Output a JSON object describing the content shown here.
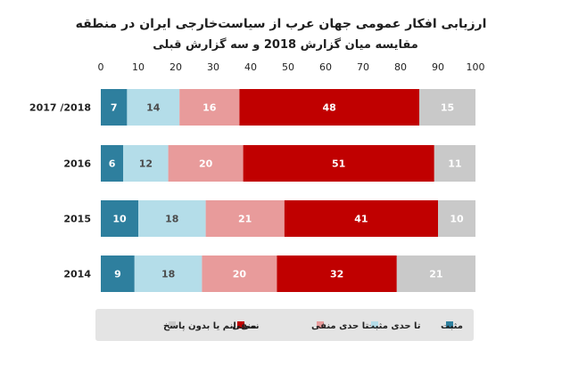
{
  "chart_data": {
    "type": "bar",
    "orientation": "horizontal",
    "stacked": true,
    "title": "ارزیابی افکار عمومی جهان عرب از سیاست‌خارجی ایران در منطقه",
    "subtitle": "مقایسه میان گزارش 2018 و سه گزارش قبلی",
    "categories": [
      "2017 /2018",
      "2016",
      "2015",
      "2014"
    ],
    "xlim": [
      0,
      100
    ],
    "xticks": [
      0,
      10,
      20,
      30,
      40,
      50,
      60,
      70,
      80,
      90,
      100
    ],
    "grid": false,
    "legend_position": "bottom",
    "series": [
      {
        "name": "مثبت",
        "values": [
          7,
          6,
          10,
          9
        ],
        "color": "#2e7f9e",
        "label_color": "#ffffff"
      },
      {
        "name": "تا حدی مثبت",
        "values": [
          14,
          12,
          18,
          18
        ],
        "color": "#b4dde9",
        "label_color": "#4b4b4b"
      },
      {
        "name": "تا حدی منفی",
        "values": [
          16,
          20,
          21,
          20
        ],
        "color": "#e89b9b",
        "label_color": "#ffffff"
      },
      {
        "name": "منفی",
        "values": [
          48,
          51,
          41,
          32
        ],
        "color": "#c00000",
        "label_color": "#ffffff"
      },
      {
        "name": "نمی‌دانم یا بدون پاسخ",
        "values": [
          15,
          11,
          10,
          21
        ],
        "color": "#c9c9c9",
        "label_color": "#ffffff"
      }
    ]
  }
}
